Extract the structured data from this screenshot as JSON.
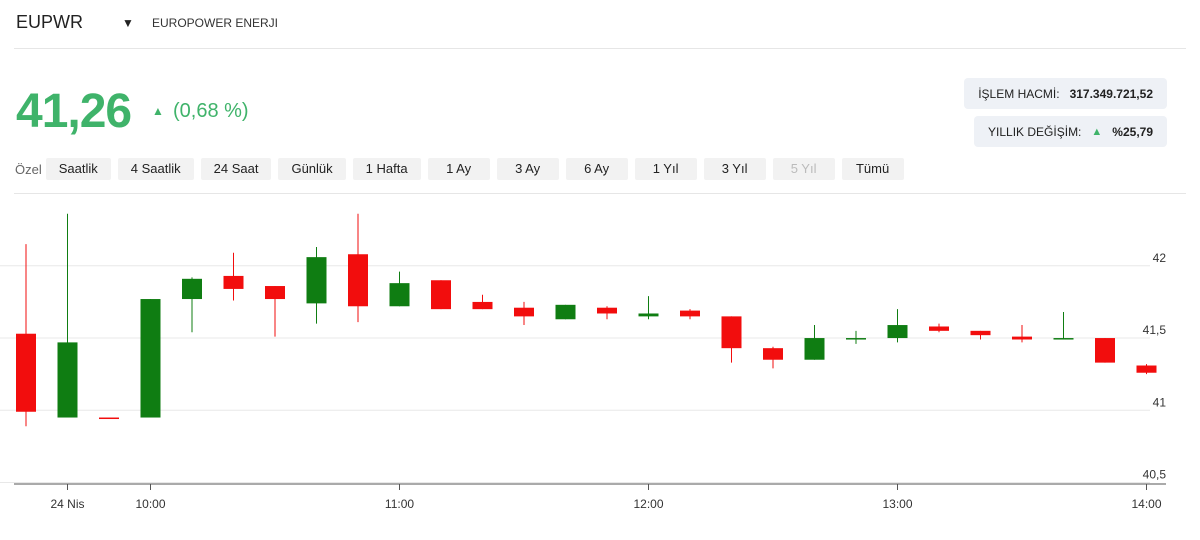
{
  "header": {
    "symbol": "EUPWR",
    "name": "EUROPOWER ENERJI"
  },
  "quote": {
    "price": "41,26",
    "change": "(0,68 %)",
    "stats": [
      {
        "label": "İŞLEM HACMİ:",
        "value": "317.349.721,52"
      },
      {
        "label": "YILLIK DEĞİŞİM:",
        "value": "%25,79"
      }
    ]
  },
  "ranges": {
    "label": "Özel",
    "buttons": [
      "Saatlik",
      "4 Saatlik",
      "24 Saat",
      "Günlük",
      "1 Hafta",
      "1 Ay",
      "3 Ay",
      "6 Ay",
      "1 Yıl",
      "3 Yıl",
      "5 Yıl",
      "Tümü"
    ]
  },
  "chart_data": {
    "type": "candlestick",
    "categories": [
      null,
      "24 Nis",
      null,
      "10:00",
      null,
      null,
      null,
      null,
      null,
      "11:00",
      null,
      null,
      null,
      null,
      null,
      "12:00",
      null,
      null,
      null,
      null,
      null,
      "13:00",
      null,
      null,
      null,
      null,
      null,
      "14:00"
    ],
    "open": [
      41.53,
      40.95,
      40.95,
      40.95,
      41.77,
      41.93,
      41.86,
      41.74,
      42.08,
      41.72,
      41.9,
      41.75,
      41.71,
      41.63,
      41.71,
      41.65,
      41.69,
      41.65,
      41.43,
      41.35,
      41.49,
      41.5,
      41.58,
      41.55,
      41.51,
      41.49,
      41.5,
      41.31
    ],
    "high": [
      42.15,
      42.36,
      40.95,
      41.77,
      41.92,
      42.09,
      41.86,
      42.13,
      42.36,
      41.96,
      41.9,
      41.8,
      41.75,
      41.73,
      41.72,
      41.79,
      41.7,
      41.65,
      41.44,
      41.59,
      41.55,
      41.7,
      41.6,
      41.55,
      41.59,
      41.68,
      41.5,
      41.32
    ],
    "low": [
      40.89,
      40.95,
      40.95,
      40.95,
      41.54,
      41.76,
      41.51,
      41.6,
      41.61,
      41.72,
      41.7,
      41.7,
      41.59,
      41.63,
      41.63,
      41.63,
      41.63,
      41.33,
      41.29,
      41.35,
      41.46,
      41.47,
      41.54,
      41.49,
      41.47,
      41.49,
      41.33,
      41.25
    ],
    "close": [
      40.99,
      41.47,
      40.95,
      41.77,
      41.91,
      41.84,
      41.77,
      42.06,
      41.72,
      41.88,
      41.7,
      41.7,
      41.65,
      41.73,
      41.67,
      41.67,
      41.65,
      41.43,
      41.35,
      41.5,
      41.5,
      41.59,
      41.55,
      41.52,
      41.49,
      41.5,
      41.33,
      41.26
    ],
    "up_color": "#0f7d12",
    "down_color": "#f20d0d",
    "ylim": [
      40.49,
      42.49
    ],
    "yticks": [
      {
        "value": 40.5,
        "label": "40,5"
      },
      {
        "value": 41,
        "label": "41"
      },
      {
        "value": 41.5,
        "label": "41,5"
      },
      {
        "value": 42,
        "label": "42"
      }
    ],
    "grid": true
  }
}
